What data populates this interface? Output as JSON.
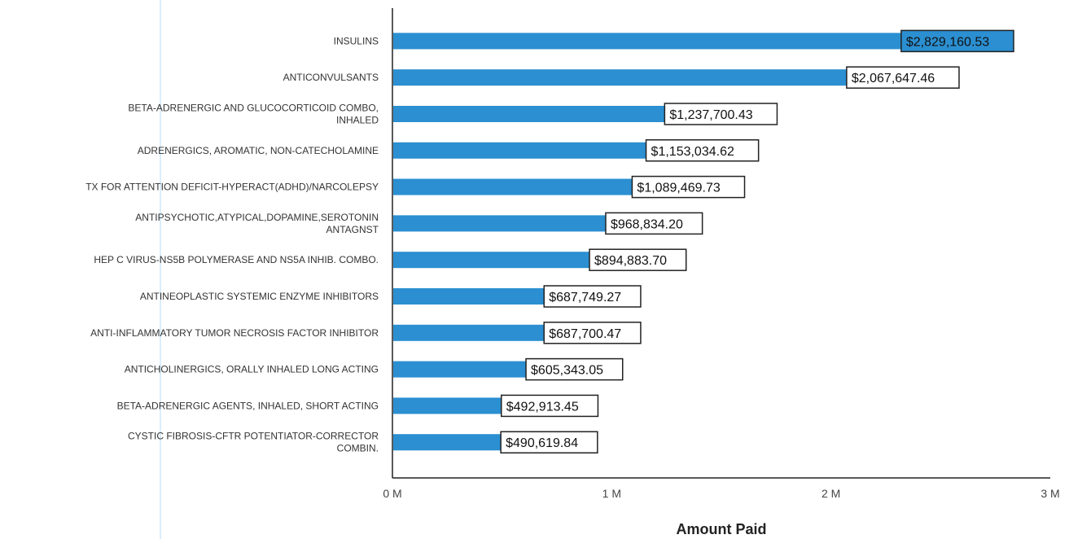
{
  "chart_data": {
    "type": "bar",
    "orientation": "horizontal",
    "categories": [
      [
        "INSULINS"
      ],
      [
        "ANTICONVULSANTS"
      ],
      [
        "BETA-ADRENERGIC AND GLUCOCORTICOID COMBO,",
        "INHALED"
      ],
      [
        "ADRENERGICS, AROMATIC, NON-CATECHOLAMINE"
      ],
      [
        "TX FOR ATTENTION DEFICIT-HYPERACT(ADHD)/NARCOLEPSY"
      ],
      [
        "ANTIPSYCHOTIC,ATYPICAL,DOPAMINE,SEROTONIN",
        "ANTAGNST"
      ],
      [
        "HEP C VIRUS-NS5B POLYMERASE AND NS5A INHIB. COMBO."
      ],
      [
        "ANTINEOPLASTIC SYSTEMIC ENZYME INHIBITORS"
      ],
      [
        "ANTI-INFLAMMATORY TUMOR NECROSIS FACTOR INHIBITOR"
      ],
      [
        "ANTICHOLINERGICS, ORALLY INHALED LONG ACTING"
      ],
      [
        "BETA-ADRENERGIC AGENTS, INHALED, SHORT ACTING"
      ],
      [
        "CYSTIC FIBROSIS-CFTR POTENTIATOR-CORRECTOR",
        "COMBIN."
      ]
    ],
    "values": [
      2829160.53,
      2067647.46,
      1237700.43,
      1153034.62,
      1089469.73,
      968834.2,
      894883.7,
      687749.27,
      687700.47,
      605343.05,
      492913.45,
      490619.84
    ],
    "data_labels": [
      "$2,829,160.53",
      "$2,067,647.46",
      "$1,237,700.43",
      "$1,153,034.62",
      "$1,089,469.73",
      "$968,834.20",
      "$894,883.70",
      "$687,749.27",
      "$687,700.47",
      "$605,343.05",
      "$492,913.45",
      "$490,619.84"
    ],
    "x_ticks": [
      0,
      1000000,
      2000000,
      3000000
    ],
    "x_tick_labels": [
      "0 M",
      "1 M",
      "2 M",
      "3 M"
    ],
    "xlim": [
      0,
      3000000
    ],
    "xlabel": "Amount Paid",
    "ylabel": "",
    "title": "",
    "grid": false,
    "legend": "none",
    "bar_color": "#2b8fd1",
    "highlight_label_fill": "#2b8fd1"
  }
}
